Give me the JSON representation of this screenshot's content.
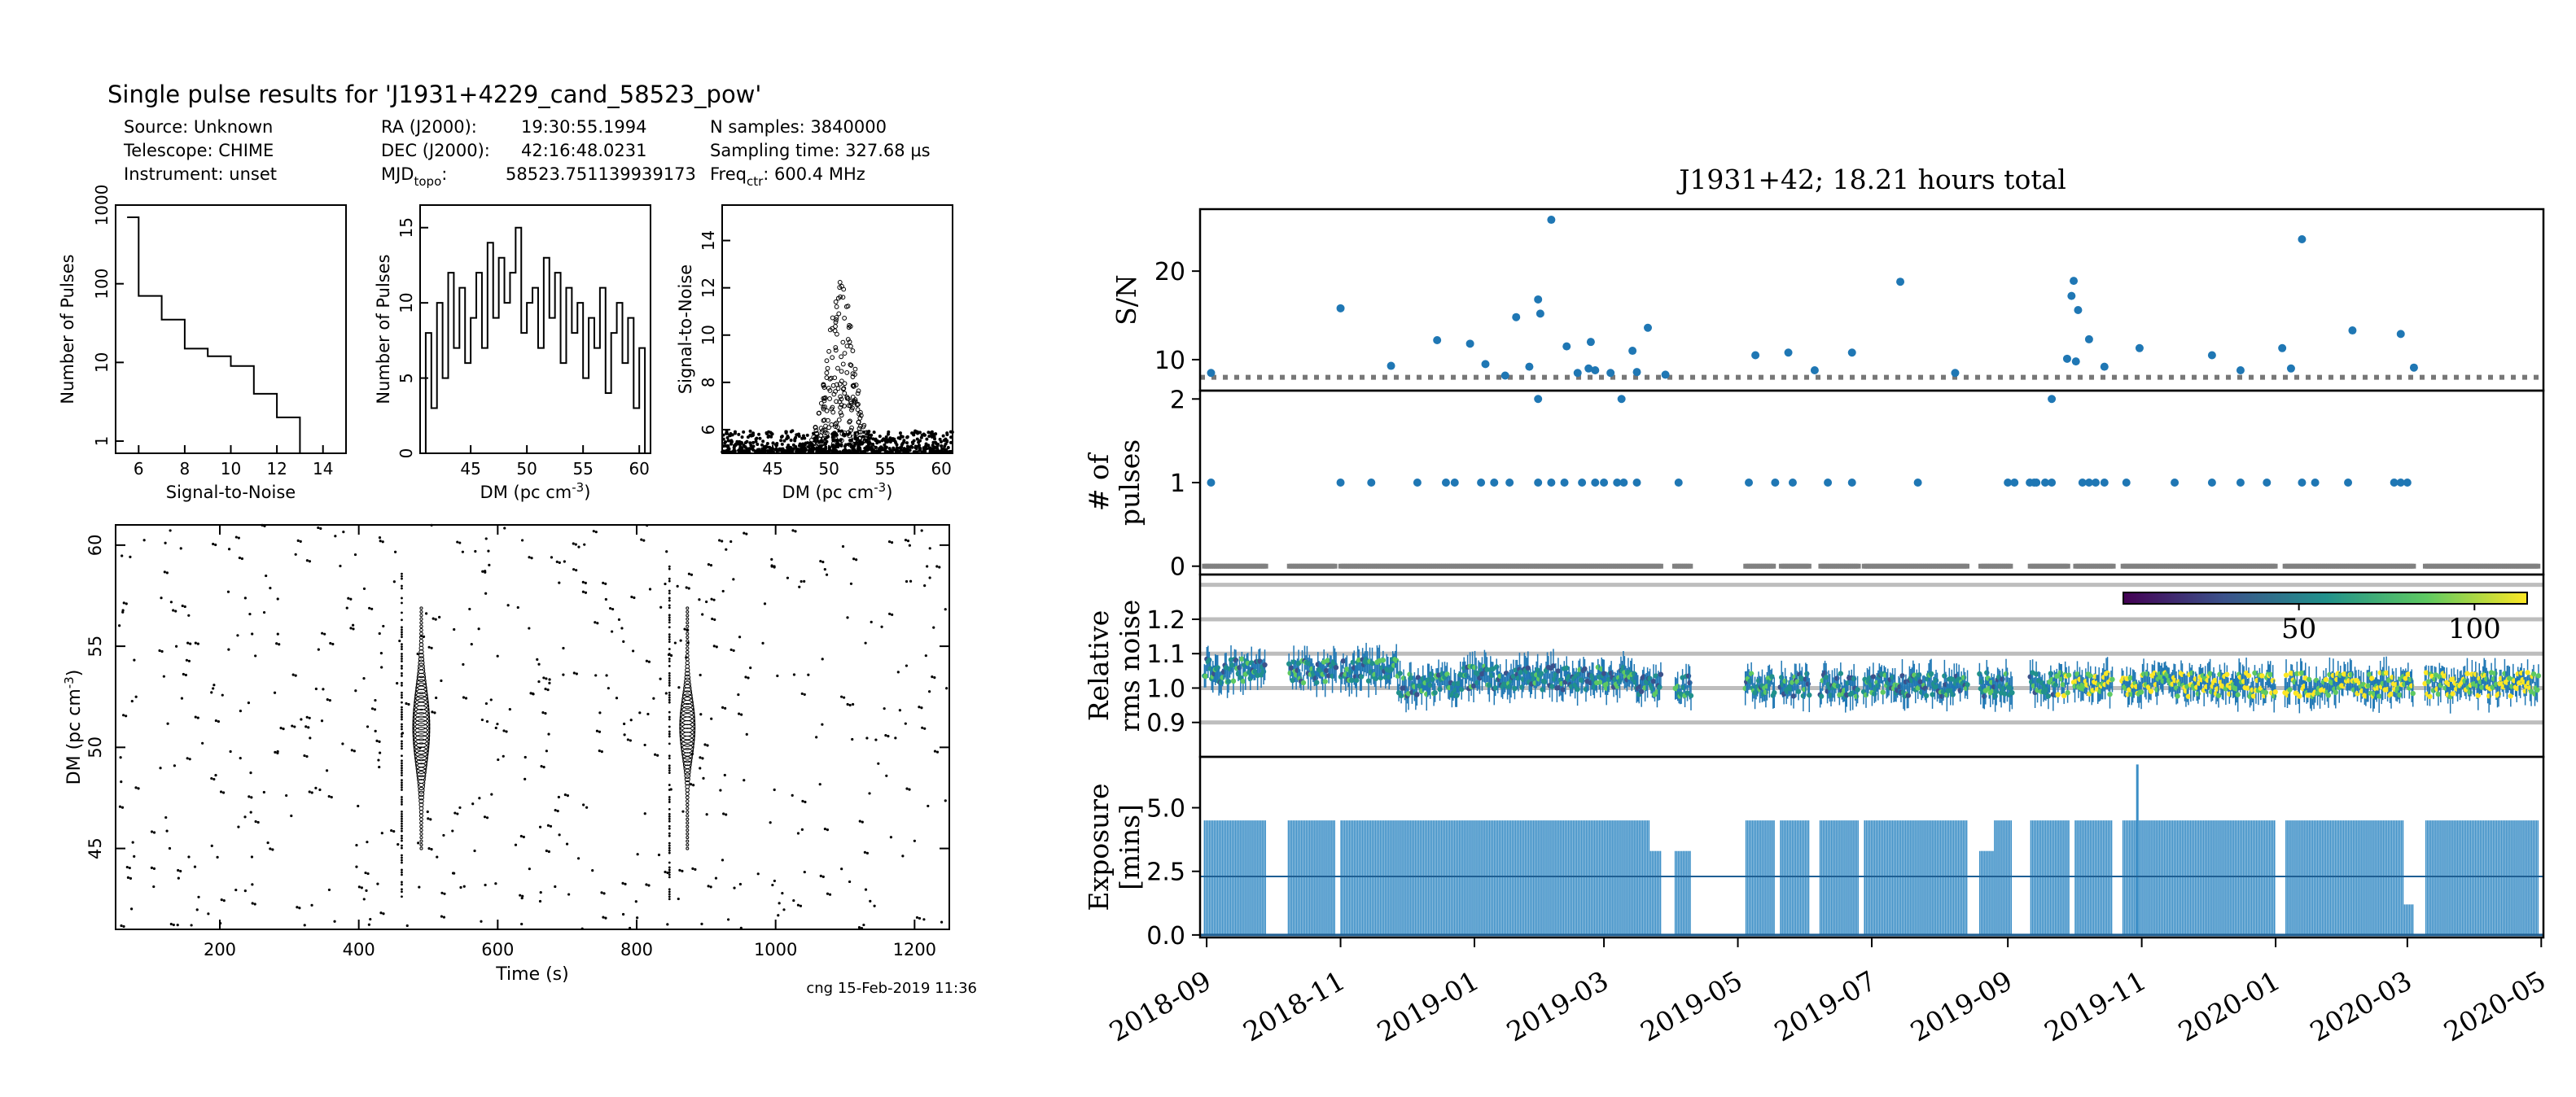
{
  "colors": {
    "pulse_blue": "#1f77b4",
    "zero_gray": "#808080",
    "grid_gray": "#bdbdbd",
    "bar_blue": "#3b8ec6",
    "viridis_low": "#440154",
    "viridis_mid": "#21918c",
    "viridis_high": "#fde725"
  },
  "left": {
    "title": "Single pulse results for 'J1931+4229_cand_58523_pow'",
    "info": {
      "col1": [
        "Source: Unknown",
        "Telescope: CHIME",
        "Instrument: unset"
      ],
      "col2_labels": [
        "RA (J2000):",
        "DEC (J2000):",
        "MJD"
      ],
      "col2_sub": "topo",
      "col2_colon": ":",
      "col2_values": [
        "19:30:55.1994",
        "42:16:48.0231",
        "58523.751139939173"
      ],
      "col3": [
        "N samples: 3840000",
        "Sampling time: 327.68 µs"
      ],
      "col3_freq_label": "Freq",
      "col3_freq_sub": "ctr",
      "col3_freq_value": ": 600.4 MHz"
    },
    "footer": "cng 15-Feb-2019 11:36"
  },
  "right": {
    "title": "J1931+42; 18.21 hours total"
  },
  "chart_data": [
    {
      "id": "snr-histogram",
      "type": "histogram-step",
      "xlabel": "Signal-to-Noise",
      "ylabel": "Number of Pulses",
      "yscale": "log",
      "xlim": [
        5,
        15
      ],
      "ylim": [
        0.7,
        1000
      ],
      "xticks": [
        "6",
        "8",
        "10",
        "12",
        "14"
      ],
      "yticks": [
        "1",
        "10",
        "100",
        "1000"
      ],
      "edges": [
        5.5,
        6,
        7,
        8,
        9,
        10,
        11,
        12,
        13
      ],
      "counts": [
        700,
        70,
        35,
        15,
        12,
        9,
        4,
        2
      ]
    },
    {
      "id": "dm-histogram",
      "type": "histogram-step",
      "xlabel": "DM (pc cm",
      "xlabel_sup": "-3",
      "xlabel_close": ")",
      "ylabel": "Number of Pulses",
      "xlim": [
        40.5,
        61
      ],
      "ylim": [
        0,
        16.5
      ],
      "xticks": [
        "45",
        "50",
        "55",
        "60"
      ],
      "yticks": [
        "0",
        "5",
        "10",
        "15"
      ],
      "bins": [
        41,
        41.5,
        42,
        42.5,
        43,
        43.5,
        44,
        44.5,
        45,
        45.5,
        46,
        46.5,
        47,
        47.5,
        48,
        48.5,
        49,
        49.5,
        50,
        50.5,
        51,
        51.5,
        52,
        52.5,
        53,
        53.5,
        54,
        54.5,
        55,
        55.5,
        56,
        56.5,
        57,
        57.5,
        58,
        58.5,
        59,
        59.5,
        60
      ],
      "counts": [
        8,
        3,
        10,
        5,
        12,
        7,
        11,
        6,
        9,
        12,
        7,
        14,
        9,
        13,
        10,
        12,
        15,
        8,
        10,
        11,
        7,
        13,
        9,
        12,
        6,
        11,
        8,
        10,
        5,
        9,
        7,
        11,
        4,
        8,
        10,
        6,
        9,
        3,
        7
      ]
    },
    {
      "id": "snr-vs-dm",
      "type": "scatter",
      "xlabel": "DM (pc cm",
      "xlabel_sup": "-3",
      "xlabel_close": ")",
      "ylabel": "Signal-to-Noise",
      "xlim": [
        40.5,
        61
      ],
      "ylim": [
        5,
        15.5
      ],
      "xticks": [
        "45",
        "50",
        "55",
        "60"
      ],
      "yticks": [
        "6",
        "8",
        "10",
        "12",
        "14"
      ],
      "peak_dm": 51,
      "peak_snr": 12.6
    },
    {
      "id": "dm-vs-time",
      "type": "scatter",
      "xlabel": "Time (s)",
      "ylabel": "DM (pc cm",
      "ylabel_sup": "-3",
      "ylabel_close": ")",
      "xlim": [
        50,
        1250
      ],
      "ylim": [
        41,
        61
      ],
      "xticks": [
        "200",
        "400",
        "600",
        "800",
        "1000",
        "1200"
      ],
      "xtickvals": [
        200,
        400,
        600,
        800,
        1000,
        1200
      ],
      "yticks": [
        "45",
        "50",
        "55",
        "60"
      ],
      "ytickvals": [
        45,
        50,
        55,
        60
      ],
      "pulse_times": [
        490,
        873
      ],
      "pulse_dm": 51
    },
    {
      "id": "snr-timeline",
      "type": "scatter",
      "ylabel": "S/N",
      "yticks": [
        "10",
        "20"
      ],
      "ytickvals": [
        10,
        20
      ],
      "ylim": [
        6.5,
        27
      ],
      "threshold": 8,
      "points": [
        [
          5,
          8.5
        ],
        [
          64,
          15.8
        ],
        [
          87,
          9.3
        ],
        [
          108,
          12.2
        ],
        [
          123,
          11.8
        ],
        [
          130,
          9.5
        ],
        [
          139,
          8.2
        ],
        [
          144,
          14.8
        ],
        [
          150,
          9.2
        ],
        [
          154,
          16.8
        ],
        [
          155,
          15.2
        ],
        [
          160,
          25.8
        ],
        [
          167,
          11.5
        ],
        [
          172,
          8.5
        ],
        [
          177,
          9.0
        ],
        [
          178,
          12.0
        ],
        [
          180,
          8.8
        ],
        [
          187,
          8.5
        ],
        [
          197,
          11.0
        ],
        [
          199,
          8.6
        ],
        [
          204,
          13.6
        ],
        [
          212,
          8.3
        ],
        [
          253,
          10.5
        ],
        [
          268,
          10.8
        ],
        [
          280,
          8.8
        ],
        [
          297,
          10.8
        ],
        [
          319,
          18.8
        ],
        [
          344,
          8.5
        ],
        [
          395,
          10.1
        ],
        [
          397,
          17.2
        ],
        [
          398,
          18.9
        ],
        [
          399,
          9.8
        ],
        [
          400,
          15.6
        ],
        [
          405,
          12.3
        ],
        [
          412,
          9.2
        ],
        [
          428,
          11.3
        ],
        [
          461,
          10.5
        ],
        [
          474,
          8.8
        ],
        [
          493,
          11.3
        ],
        [
          497,
          9.0
        ],
        [
          502,
          23.6
        ],
        [
          525,
          13.3
        ],
        [
          547,
          12.9
        ],
        [
          553,
          9.1
        ]
      ]
    },
    {
      "id": "pulses-timeline",
      "type": "scatter",
      "ylabel": "# of pulses",
      "yticks": [
        "0",
        "1",
        "2"
      ],
      "ytickvals": [
        0,
        1,
        2
      ],
      "ylim": [
        -0.1,
        2.1
      ],
      "ones": [
        5,
        64,
        78,
        99,
        112,
        116,
        128,
        134,
        141,
        154,
        160,
        166,
        174,
        180,
        184,
        190,
        193,
        199,
        218,
        250,
        262,
        270,
        286,
        297,
        327,
        368,
        371,
        378,
        380,
        381,
        385,
        388,
        402,
        405,
        408,
        412,
        422,
        444,
        461,
        474,
        486,
        502,
        508,
        523,
        544,
        547,
        550
      ],
      "twos": [
        154,
        192,
        388
      ]
    },
    {
      "id": "rms-noise-timeline",
      "type": "errorbar-scatter-colormap",
      "ylabel": "Relative rms noise",
      "yticks": [
        "0.9",
        "1.0",
        "1.1",
        "1.2"
      ],
      "ytickvals": [
        0.9,
        1.0,
        1.1,
        1.2
      ],
      "ylim": [
        0.8,
        1.33
      ],
      "gridlines": [
        0.9,
        1.0,
        1.1,
        1.2,
        1.3
      ],
      "colorbar_ticks": [
        "50",
        "100"
      ],
      "colorbar_range": [
        0,
        115
      ],
      "colorbar_tickvals": [
        50,
        100
      ]
    },
    {
      "id": "exposure-timeline",
      "type": "bar",
      "ylabel": "Exposure [mins]",
      "yticks": [
        "0.0",
        "2.5",
        "5.0"
      ],
      "ytickvals": [
        0,
        2.5,
        5.0
      ],
      "ylim": [
        -0.1,
        7.0
      ],
      "typical": 4.5,
      "max_spike": 6.7
    }
  ],
  "timeline_axis": {
    "start": "2018-08-29",
    "end": "2020-05-02",
    "ticks": [
      "2018-09",
      "2018-11",
      "2019-01",
      "2019-03",
      "2019-05",
      "2019-07",
      "2019-09",
      "2019-11",
      "2020-01",
      "2020-03",
      "2020-05"
    ],
    "tick_days": [
      3,
      64,
      125,
      184,
      245,
      306,
      368,
      429,
      490,
      550,
      611
    ]
  }
}
